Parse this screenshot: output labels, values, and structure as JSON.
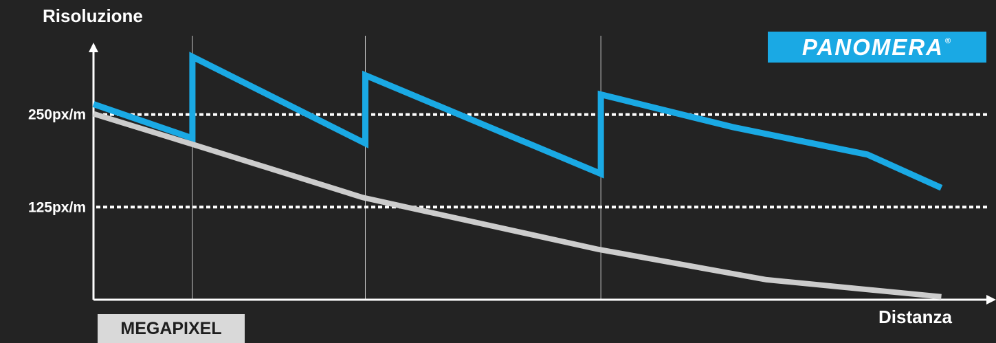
{
  "chart_data": {
    "type": "line",
    "ylabel": "Risoluzione",
    "xlabel": "Distanza",
    "yticks": [
      {
        "label": "250px/m",
        "value": 250
      },
      {
        "label": "125px/m",
        "value": 125
      }
    ],
    "ylim": [
      0,
      335
    ],
    "xlim": [
      0,
      1330
    ],
    "reference_line_style": "dotted",
    "vertical_lines_x": [
      147,
      404,
      754
    ],
    "series": [
      {
        "name": "PANOMERA",
        "color": "#1aa9e4",
        "x": [
          0,
          147,
          147,
          404,
          404,
          754,
          754,
          950,
          1150,
          1260
        ],
        "y": [
          264,
          218,
          328,
          211,
          303,
          170,
          277,
          233,
          196,
          151
        ]
      },
      {
        "name": "MEGAPIXEL",
        "color": "#cccccc",
        "x": [
          0,
          150,
          400,
          750,
          1000,
          1260
        ],
        "y": [
          251,
          209,
          138,
          68,
          27,
          4
        ]
      }
    ],
    "legend": {
      "brand_label": "PANOMERA",
      "brand_mark": "®",
      "brand_color": "#1aa9e4",
      "megapixel_label": "MEGAPIXEL",
      "megapixel_color": "#d9d9d9"
    }
  }
}
